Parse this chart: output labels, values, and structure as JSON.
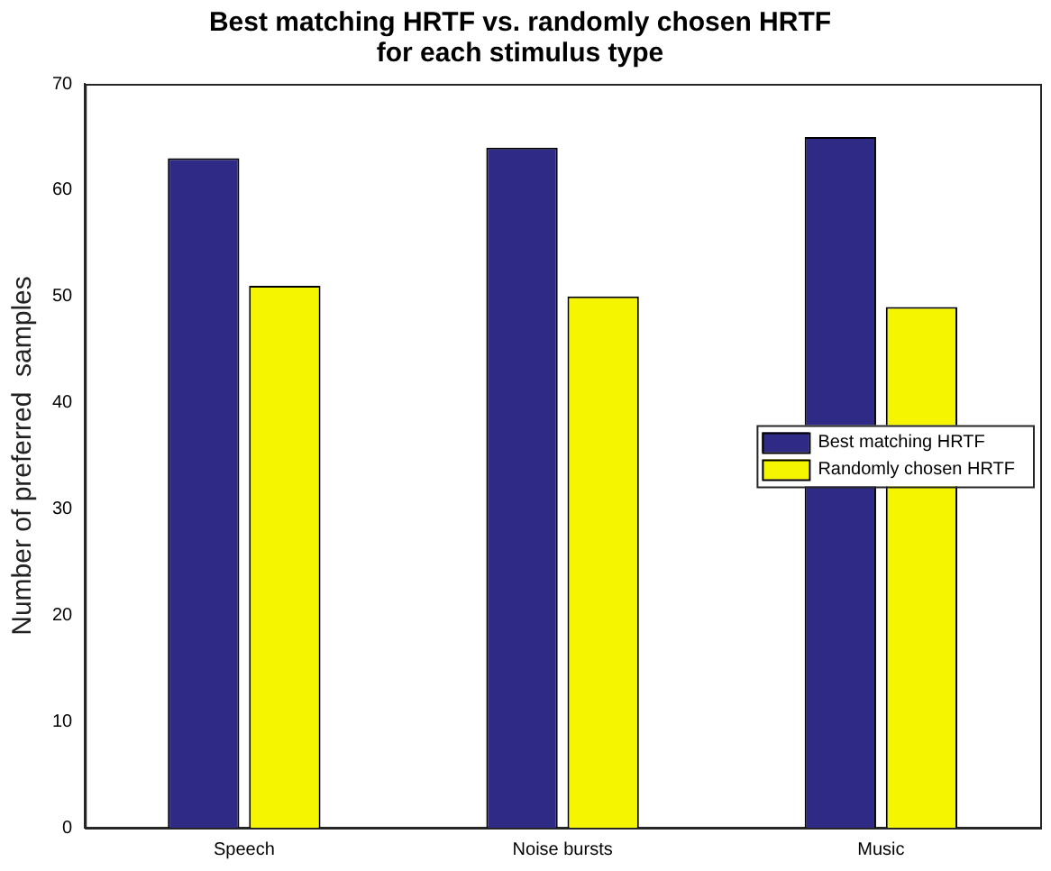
{
  "chart_data": {
    "type": "bar",
    "title": "Best matching HRTF vs. randomly chosen HRTF\nfor each stimulus type",
    "ylabel": "Number of preferred  samples",
    "categories": [
      "Speech",
      "Noise bursts",
      "Music"
    ],
    "series": [
      {
        "name": "Best matching HRTF",
        "color": "#2e2a86",
        "values": [
          63,
          64,
          65
        ]
      },
      {
        "name": "Randomly chosen HRTF",
        "color": "#f5f500",
        "values": [
          51,
          50,
          49
        ]
      }
    ],
    "ylim": [
      0,
      70
    ],
    "yticks": [
      0,
      10,
      20,
      30,
      40,
      50,
      60,
      70
    ],
    "grid": false,
    "legend": "right"
  }
}
